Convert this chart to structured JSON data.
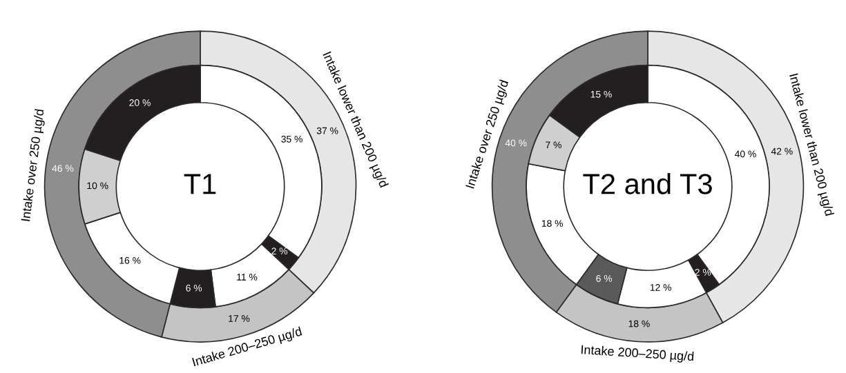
{
  "chart_data": [
    {
      "type": "donut",
      "title": "T1",
      "legend": false,
      "annotations": [
        "Intake lower than 200 µg/d",
        "Intake 200–250 µg/d",
        "Intake over 250 µg/d"
      ],
      "series": [
        {
          "values": [
            37,
            17,
            46
          ],
          "colors": [
            "#e6e6e6",
            "#c4c4c4",
            "#8e8e8e"
          ],
          "value_labels": [
            "37 %",
            "17 %",
            "46 %"
          ]
        },
        {
          "values": [
            35,
            2,
            11,
            6,
            16,
            10,
            20
          ],
          "colors": [
            "#ffffff",
            "#231f20",
            "#ffffff",
            "#231f20",
            "#ffffff",
            "#cfcfcf",
            "#231f20"
          ],
          "value_labels": [
            "35 %",
            "2 %",
            "11 %",
            "6 %",
            "16 %",
            "10 %",
            "20 %"
          ]
        }
      ]
    },
    {
      "type": "donut",
      "title": "T2 and T3",
      "legend": false,
      "annotations": [
        "Intake lower than 200 µg/d",
        "Intake 200–250 µg/d",
        "Intake over 250 µg/d"
      ],
      "series": [
        {
          "values": [
            42,
            18,
            40
          ],
          "colors": [
            "#e6e6e6",
            "#c4c4c4",
            "#8e8e8e"
          ],
          "value_labels": [
            "42 %",
            "18 %",
            "40 %"
          ]
        },
        {
          "values": [
            40,
            2,
            12,
            6,
            18,
            7,
            15
          ],
          "colors": [
            "#ffffff",
            "#231f20",
            "#ffffff",
            "#5a5a5a",
            "#ffffff",
            "#cfcfcf",
            "#231f20"
          ],
          "value_labels": [
            "40 %",
            "2 %",
            "12 %",
            "6 %",
            "18 %",
            "7 %",
            "15 %"
          ]
        }
      ]
    }
  ]
}
